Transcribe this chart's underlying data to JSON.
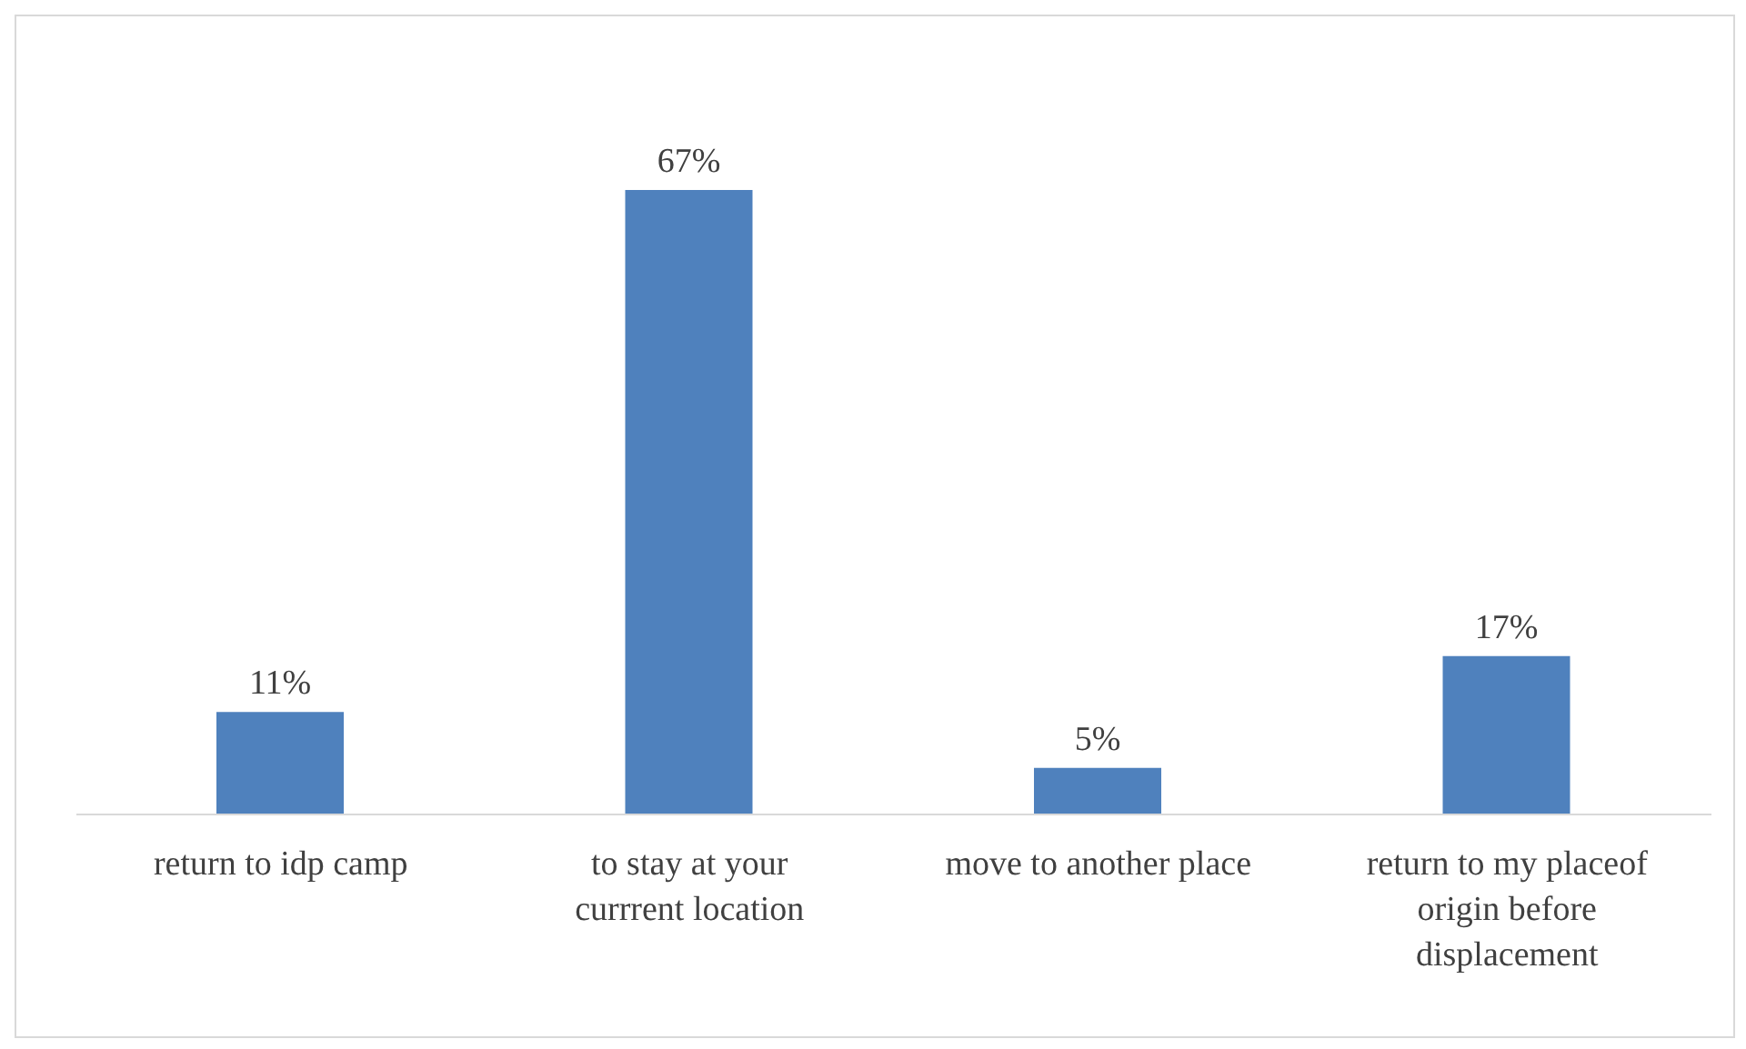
{
  "chart_data": {
    "type": "bar",
    "categories": [
      "return to idp camp",
      "to stay at your currrent location",
      "move to another place",
      "return to my placeof origin before displacement"
    ],
    "values": [
      11,
      67,
      5,
      17
    ],
    "value_labels": [
      "11%",
      "67%",
      "5%",
      "17%"
    ],
    "color": "#4f81bd",
    "grid": false,
    "legend": false
  }
}
